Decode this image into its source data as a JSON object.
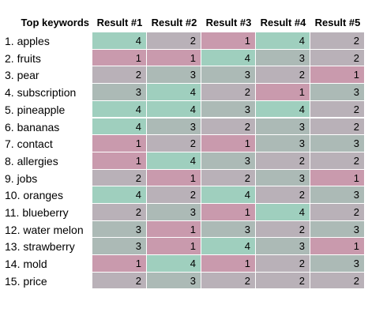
{
  "chart_data": {
    "type": "heatmap",
    "title": "",
    "row_header": "Top keywords",
    "columns": [
      "Result #1",
      "Result #2",
      "Result #3",
      "Result #4",
      "Result #5"
    ],
    "rows": [
      "1. apples",
      "2. fruits",
      "3. pear",
      "4. subscription",
      "5. pineapple",
      "6. bananas",
      "7. contact",
      "8. allergies",
      "9. jobs",
      "10. oranges",
      "11. blueberry",
      "12. water melon",
      "13. strawberry",
      "14. mold",
      "15. price"
    ],
    "values": [
      [
        4,
        2,
        1,
        4,
        2
      ],
      [
        1,
        1,
        4,
        3,
        2
      ],
      [
        2,
        3,
        3,
        2,
        1
      ],
      [
        3,
        4,
        2,
        1,
        3
      ],
      [
        4,
        4,
        3,
        4,
        2
      ],
      [
        4,
        3,
        2,
        3,
        2
      ],
      [
        1,
        2,
        1,
        3,
        3
      ],
      [
        1,
        4,
        3,
        2,
        2
      ],
      [
        2,
        1,
        2,
        3,
        1
      ],
      [
        4,
        2,
        4,
        2,
        3
      ],
      [
        2,
        3,
        1,
        4,
        2
      ],
      [
        3,
        1,
        3,
        2,
        3
      ],
      [
        3,
        1,
        4,
        3,
        1
      ],
      [
        1,
        4,
        1,
        2,
        3
      ],
      [
        2,
        3,
        2,
        2,
        2
      ]
    ],
    "color_scale": {
      "1": "#c99aad",
      "2": "#b9b1b8",
      "3": "#acbab6",
      "4": "#9fcfbe"
    },
    "grid_color": "#ffffff"
  }
}
